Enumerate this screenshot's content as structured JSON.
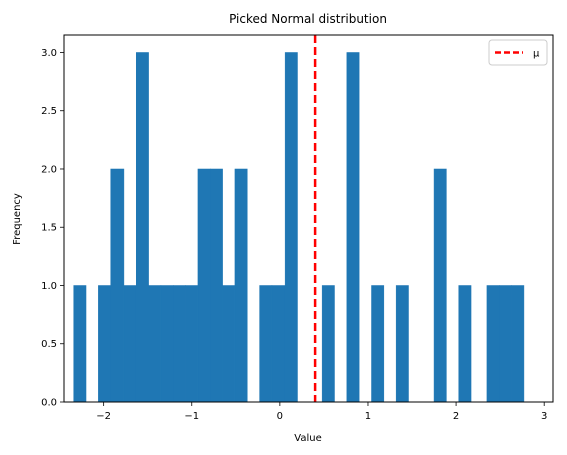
{
  "chart_data": {
    "type": "bar",
    "title": "Picked Normal distribution",
    "xlabel": "Value",
    "ylabel": "Frequency",
    "xlim": [
      -2.45,
      3.1
    ],
    "ylim": [
      0,
      3.15
    ],
    "xticks": [
      -2,
      -1,
      0,
      1,
      2,
      3
    ],
    "xtick_labels": [
      "−2",
      "−1",
      "0",
      "1",
      "2",
      "3"
    ],
    "yticks": [
      0.0,
      0.5,
      1.0,
      1.5,
      2.0,
      2.5,
      3.0
    ],
    "ytick_labels": [
      "0.0",
      "0.5",
      "1.0",
      "1.5",
      "2.0",
      "2.5",
      "3.0"
    ],
    "bar_color": "#1f77b4",
    "bins": [
      {
        "x0": -2.34,
        "x1": -2.2,
        "value": 1
      },
      {
        "x0": -2.06,
        "x1": -1.92,
        "value": 1
      },
      {
        "x0": -1.92,
        "x1": -1.77,
        "value": 2
      },
      {
        "x0": -1.77,
        "x1": -1.63,
        "value": 1
      },
      {
        "x0": -1.63,
        "x1": -1.49,
        "value": 3
      },
      {
        "x0": -1.49,
        "x1": -1.35,
        "value": 1
      },
      {
        "x0": -1.35,
        "x1": -1.21,
        "value": 1
      },
      {
        "x0": -1.21,
        "x1": -1.07,
        "value": 1
      },
      {
        "x0": -1.07,
        "x1": -0.93,
        "value": 1
      },
      {
        "x0": -0.93,
        "x1": -0.79,
        "value": 2
      },
      {
        "x0": -0.79,
        "x1": -0.65,
        "value": 2
      },
      {
        "x0": -0.65,
        "x1": -0.51,
        "value": 1
      },
      {
        "x0": -0.51,
        "x1": -0.37,
        "value": 2
      },
      {
        "x0": -0.23,
        "x1": -0.09,
        "value": 1
      },
      {
        "x0": -0.09,
        "x1": 0.06,
        "value": 1
      },
      {
        "x0": 0.06,
        "x1": 0.2,
        "value": 3
      },
      {
        "x0": 0.48,
        "x1": 0.62,
        "value": 1
      },
      {
        "x0": 0.76,
        "x1": 0.9,
        "value": 3
      },
      {
        "x0": 1.04,
        "x1": 1.18,
        "value": 1
      },
      {
        "x0": 1.32,
        "x1": 1.46,
        "value": 1
      },
      {
        "x0": 1.75,
        "x1": 1.89,
        "value": 2
      },
      {
        "x0": 2.03,
        "x1": 2.17,
        "value": 1
      },
      {
        "x0": 2.35,
        "x1": 2.49,
        "value": 1
      },
      {
        "x0": 2.49,
        "x1": 2.63,
        "value": 1
      },
      {
        "x0": 2.63,
        "x1": 2.77,
        "value": 1
      }
    ],
    "mean_line": {
      "x": 0.4,
      "label": "μ",
      "color": "#ff0000",
      "style": "dashed"
    },
    "legend": {
      "placement": "top-right",
      "entries": [
        "μ"
      ]
    },
    "grid": false
  }
}
